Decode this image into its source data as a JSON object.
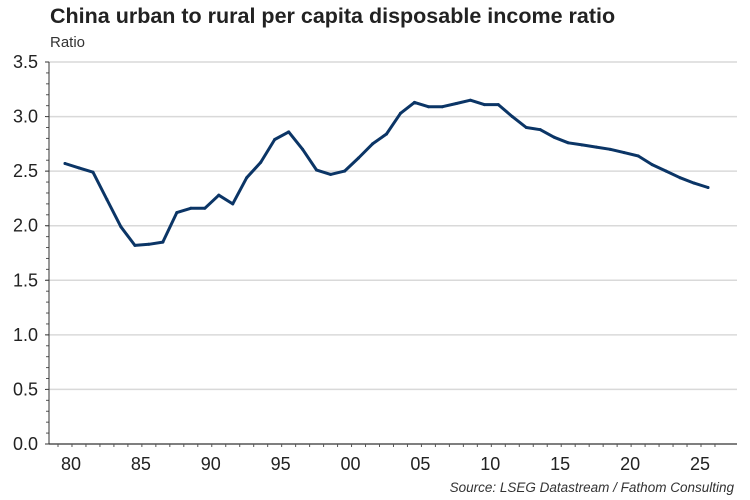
{
  "chart_data": {
    "type": "line",
    "title": "China urban to rural per capita disposable income ratio",
    "ylabel": "Ratio",
    "xlabel": "",
    "source": "Source: LSEG Datastream / Fathom Consulting",
    "ylim": [
      0,
      3.5
    ],
    "yticks": [
      "0.0",
      "0.5",
      "1.0",
      "1.5",
      "2.0",
      "2.5",
      "3.0",
      "3.5"
    ],
    "xticks": [
      "80",
      "85",
      "90",
      "95",
      "00",
      "05",
      "10",
      "15",
      "20",
      "25"
    ],
    "grid": true,
    "line_color": "#0b3566",
    "series": [
      {
        "name": "Urban to rural income ratio",
        "x": [
          1978,
          1979,
          1980,
          1981,
          1982,
          1983,
          1984,
          1985,
          1986,
          1987,
          1988,
          1989,
          1990,
          1991,
          1992,
          1993,
          1994,
          1995,
          1996,
          1997,
          1998,
          1999,
          2000,
          2001,
          2002,
          2003,
          2004,
          2005,
          2006,
          2007,
          2008,
          2009,
          2010,
          2011,
          2012,
          2013,
          2014,
          2015,
          2016,
          2017,
          2018,
          2019,
          2020,
          2021,
          2022,
          2023,
          2024
        ],
        "values": [
          2.57,
          2.53,
          2.49,
          2.24,
          1.99,
          1.82,
          1.83,
          1.85,
          2.12,
          2.16,
          2.16,
          2.28,
          2.2,
          2.44,
          2.58,
          2.79,
          2.86,
          2.7,
          2.51,
          2.47,
          2.5,
          2.62,
          2.75,
          2.84,
          3.03,
          3.13,
          3.09,
          3.09,
          3.12,
          3.15,
          3.11,
          3.11,
          3.0,
          2.9,
          2.88,
          2.81,
          2.76,
          2.74,
          2.72,
          2.7,
          2.67,
          2.64,
          2.56,
          2.5,
          2.44,
          2.39,
          2.35
        ]
      }
    ]
  }
}
